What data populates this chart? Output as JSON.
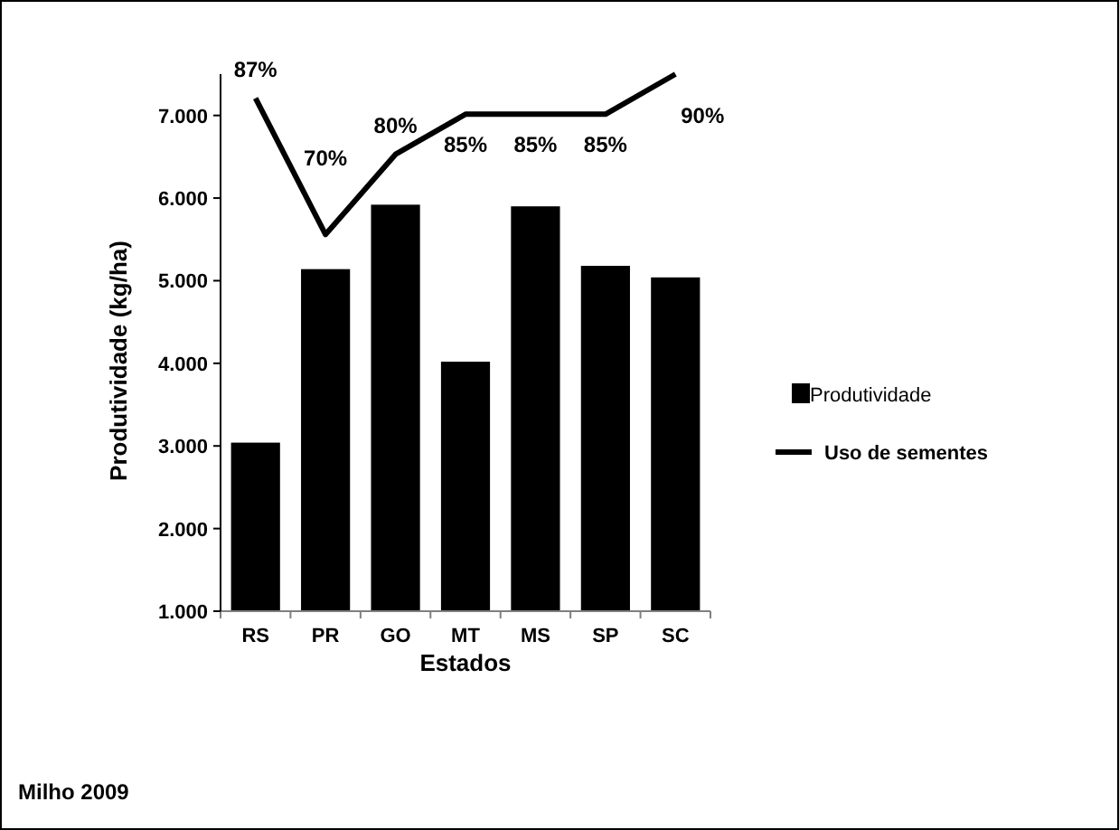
{
  "chart_data": {
    "type": "bar",
    "xlabel": "Estados",
    "ylabel": "Produtividade (kg/ha)",
    "categories": [
      "RS",
      "PR",
      "GO",
      "MT",
      "MS",
      "SP",
      "SC"
    ],
    "series": [
      {
        "name": "Produtividade",
        "color": "#000000",
        "values": [
          3040,
          5140,
          5920,
          4020,
          5900,
          5180,
          5040
        ]
      },
      {
        "name": "Uso de sementes",
        "type": "line",
        "axis": "y2",
        "color": "#000000",
        "values": [
          87,
          70,
          80,
          85,
          85,
          85,
          90
        ],
        "value_labels": [
          "87%",
          "70%",
          "80%",
          "85%",
          "85%",
          "85%",
          "90%"
        ]
      }
    ],
    "ylim": [
      1000,
      7500
    ],
    "yticks": [
      {
        "value": 1000,
        "label": "1.000"
      },
      {
        "value": 2000,
        "label": "2.000"
      },
      {
        "value": 3000,
        "label": "3.000"
      },
      {
        "value": 4000,
        "label": "4.000"
      },
      {
        "value": 5000,
        "label": "5.000"
      },
      {
        "value": 6000,
        "label": "6.000"
      },
      {
        "value": 7000,
        "label": "7.000"
      }
    ],
    "y2lim": [
      23,
      90
    ],
    "tick_labels": "xy",
    "legend": "right",
    "grid": false,
    "marker": "none",
    "line_style": "solid",
    "annotations": [
      "Milho 2009"
    ]
  }
}
